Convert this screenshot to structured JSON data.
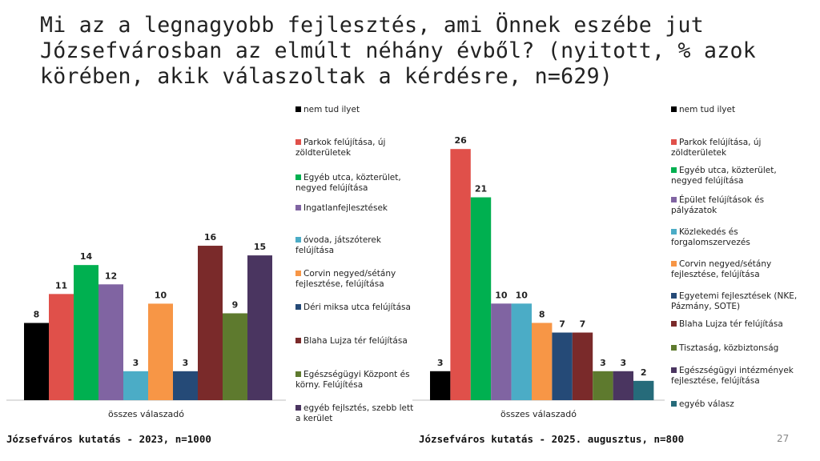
{
  "title": "Mi az a legnagyobb fejlesztés, ami Önnek eszébe jut Józsefvárosban az elmúlt néhány évből? (nyitott, % azok körében, akik válaszoltak a kérdésre, n=629)",
  "chart_data": [
    {
      "type": "bar",
      "categories": [
        "összes válaszadó"
      ],
      "ylim": [
        0,
        16
      ],
      "legend_position": "right",
      "footer": "Józsefváros kutatás - 2023, n=1000",
      "series": [
        {
          "name": "nem tud ilyet",
          "values": [
            8
          ],
          "color": "#000000"
        },
        {
          "name": "Parkok felújítása, új zöldterületek",
          "values": [
            11
          ],
          "color": "#e0504a"
        },
        {
          "name": "Egyéb utca, közterület, negyed felújítása",
          "values": [
            14
          ],
          "color": "#00b050"
        },
        {
          "name": "Ingatlanfejlesztések",
          "values": [
            12
          ],
          "color": "#8064a2"
        },
        {
          "name": "óvoda, játszóterek felújítása",
          "values": [
            3
          ],
          "color": "#4bacc6"
        },
        {
          "name": "Corvin negyed/sétány fejlesztése, felújítása",
          "values": [
            10
          ],
          "color": "#f79646"
        },
        {
          "name": "Déri miksa utca felújítása",
          "values": [
            3
          ],
          "color": "#254a77"
        },
        {
          "name": "Blaha Lujza tér felújítása",
          "values": [
            16
          ],
          "color": "#7a2a2a"
        },
        {
          "name": "Egészségügyi Központ és körny. Felújítésa",
          "values": [
            9
          ],
          "color": "#5e7a2e"
        },
        {
          "name": "egyéb fejlsztés, szebb lett a kerület",
          "values": [
            15
          ],
          "color": "#4a3560"
        }
      ]
    },
    {
      "type": "bar",
      "categories": [
        "összes válaszadó"
      ],
      "ylim": [
        0,
        26
      ],
      "legend_position": "right",
      "footer": "Józsefváros kutatás - 2025. augusztus, n=800",
      "series": [
        {
          "name": "nem tud ilyet",
          "values": [
            3
          ],
          "color": "#000000"
        },
        {
          "name": "Parkok felújítása, új zöldterületek",
          "values": [
            26
          ],
          "color": "#e0504a"
        },
        {
          "name": "Egyéb utca, közterület, negyed felújítása",
          "values": [
            21
          ],
          "color": "#00b050"
        },
        {
          "name": "Épület felújítások és pályázatok",
          "values": [
            10
          ],
          "color": "#8064a2"
        },
        {
          "name": "Közlekedés és forgalomszervezés",
          "values": [
            10
          ],
          "color": "#4bacc6"
        },
        {
          "name": "Corvin negyed/sétány fejlesztése, felújítása",
          "values": [
            8
          ],
          "color": "#f79646"
        },
        {
          "name": "Egyetemi fejlesztések (NKE, Pázmány, SOTE)",
          "values": [
            7
          ],
          "color": "#254a77"
        },
        {
          "name": "Blaha Lujza tér felújítása",
          "values": [
            7
          ],
          "color": "#7a2a2a"
        },
        {
          "name": "Tisztaság, közbiztonság",
          "values": [
            3
          ],
          "color": "#5e7a2e"
        },
        {
          "name": "Egészségügyi intézmények fejlesztése, felújítása",
          "values": [
            3
          ],
          "color": "#4a3560"
        },
        {
          "name": "egyéb válasz",
          "values": [
            2
          ],
          "color": "#266b7a"
        }
      ]
    }
  ],
  "page_number": "27"
}
